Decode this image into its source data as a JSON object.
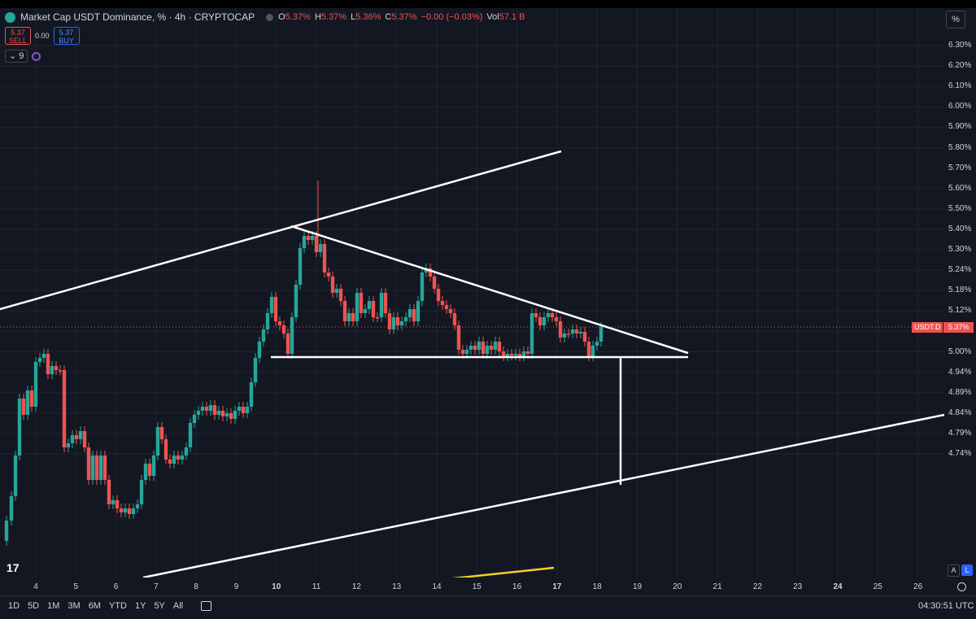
{
  "header": {
    "title": "Market Cap USDT Dominance, %",
    "sep": "·",
    "interval": "4h",
    "source": "CRYPTOCAP",
    "ohlc": [
      {
        "k": "O",
        "v": "5.37%"
      },
      {
        "k": "H",
        "v": "5.37%"
      },
      {
        "k": "L",
        "v": "5.36%"
      },
      {
        "k": "C",
        "v": "5.37%"
      },
      {
        "k": "",
        "v": "−0.00 (−0.03%)"
      },
      {
        "k": "Vol",
        "v": "57.1 B"
      }
    ]
  },
  "trade": {
    "sell_price": "5.37",
    "sell_label": "SELL",
    "spread": "0.00",
    "buy_price": "5.37",
    "buy_label": "BUY"
  },
  "indicator": {
    "collapse": "⌄",
    "count": "9"
  },
  "scale_button": "%",
  "price_axis": [
    "6.30%",
    "6.20%",
    "6.10%",
    "6.00%",
    "5.90%",
    "5.80%",
    "5.70%",
    "5.60%",
    "5.50%",
    "5.40%",
    "5.30%",
    "5.24%",
    "5.18%",
    "5.12%",
    "5.06%",
    "5.00%",
    "4.94%",
    "4.89%",
    "4.84%",
    "4.79%",
    "4.74%"
  ],
  "time_axis": [
    {
      "label": "4",
      "bold": false
    },
    {
      "label": "5",
      "bold": false
    },
    {
      "label": "6",
      "bold": false
    },
    {
      "label": "7",
      "bold": false
    },
    {
      "label": "8",
      "bold": false
    },
    {
      "label": "9",
      "bold": false
    },
    {
      "label": "10",
      "bold": true
    },
    {
      "label": "11",
      "bold": false
    },
    {
      "label": "12",
      "bold": false
    },
    {
      "label": "13",
      "bold": false
    },
    {
      "label": "14",
      "bold": false
    },
    {
      "label": "15",
      "bold": false
    },
    {
      "label": "16",
      "bold": false
    },
    {
      "label": "17",
      "bold": true
    },
    {
      "label": "18",
      "bold": false
    },
    {
      "label": "19",
      "bold": false
    },
    {
      "label": "20",
      "bold": false
    },
    {
      "label": "21",
      "bold": false
    },
    {
      "label": "22",
      "bold": false
    },
    {
      "label": "23",
      "bold": false
    },
    {
      "label": "24",
      "bold": true
    },
    {
      "label": "25",
      "bold": false
    },
    {
      "label": "26",
      "bold": false
    }
  ],
  "last_price": {
    "symbol": "USDT.D",
    "value": "5.37%"
  },
  "colors": {
    "up": "#26a69a",
    "down": "#ef5350",
    "background": "#131722",
    "grid": "#1f2430",
    "drawing": "#ffffff",
    "highlight": "#f5d02b"
  },
  "bottom_bar": {
    "ranges": [
      "1D",
      "5D",
      "1M",
      "3M",
      "6M",
      "YTD",
      "1Y",
      "5Y",
      "All"
    ],
    "clock": "04:30:51 UTC"
  },
  "corner": {
    "tv_logo": "17",
    "auto": "A",
    "log": "L"
  }
}
